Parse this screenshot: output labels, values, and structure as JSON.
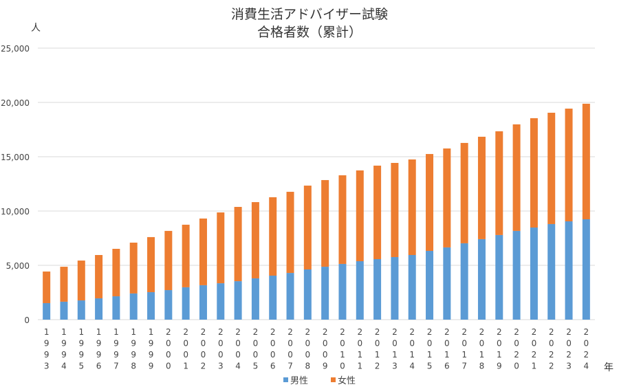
{
  "chart_data": {
    "type": "bar",
    "stacked": true,
    "title": [
      "消費生活アドバイザー試験",
      "合格者数（累計）"
    ],
    "ylabel": "人",
    "xlabel": "年",
    "ylim": [
      0,
      25000
    ],
    "yticks": [
      "0",
      "5,000",
      "10,000",
      "15,000",
      "20,000",
      "25,000"
    ],
    "ytick_values": [
      0,
      5000,
      10000,
      15000,
      20000,
      25000
    ],
    "grid": true,
    "legend_position": "bottom",
    "categories": [
      "1993",
      "1994",
      "1995",
      "1996",
      "1997",
      "1998",
      "1999",
      "2000",
      "2001",
      "2002",
      "2003",
      "2004",
      "2005",
      "2006",
      "2007",
      "2008",
      "2009",
      "2010",
      "2011",
      "2012",
      "2013",
      "2014",
      "2015",
      "2016",
      "2017",
      "2018",
      "2019",
      "2020",
      "2021",
      "2022",
      "2023",
      "2024"
    ],
    "series": [
      {
        "name": "男性",
        "color": "#5B9BD5",
        "values": [
          1520,
          1650,
          1770,
          1960,
          2150,
          2410,
          2530,
          2720,
          2980,
          3170,
          3350,
          3540,
          3800,
          4050,
          4300,
          4620,
          4870,
          5130,
          5380,
          5570,
          5760,
          5950,
          6330,
          6650,
          7030,
          7410,
          7790,
          8170,
          8480,
          8800,
          9050,
          9240
        ]
      },
      {
        "name": "女性",
        "color": "#ED7D31",
        "values": [
          2910,
          3220,
          3670,
          3990,
          4370,
          4680,
          5070,
          5450,
          5760,
          6140,
          6520,
          6840,
          7020,
          7220,
          7470,
          7720,
          7980,
          8160,
          8360,
          8610,
          8670,
          8800,
          8920,
          9110,
          9240,
          9430,
          9550,
          9810,
          10070,
          10250,
          10380,
          10640
        ]
      }
    ]
  }
}
